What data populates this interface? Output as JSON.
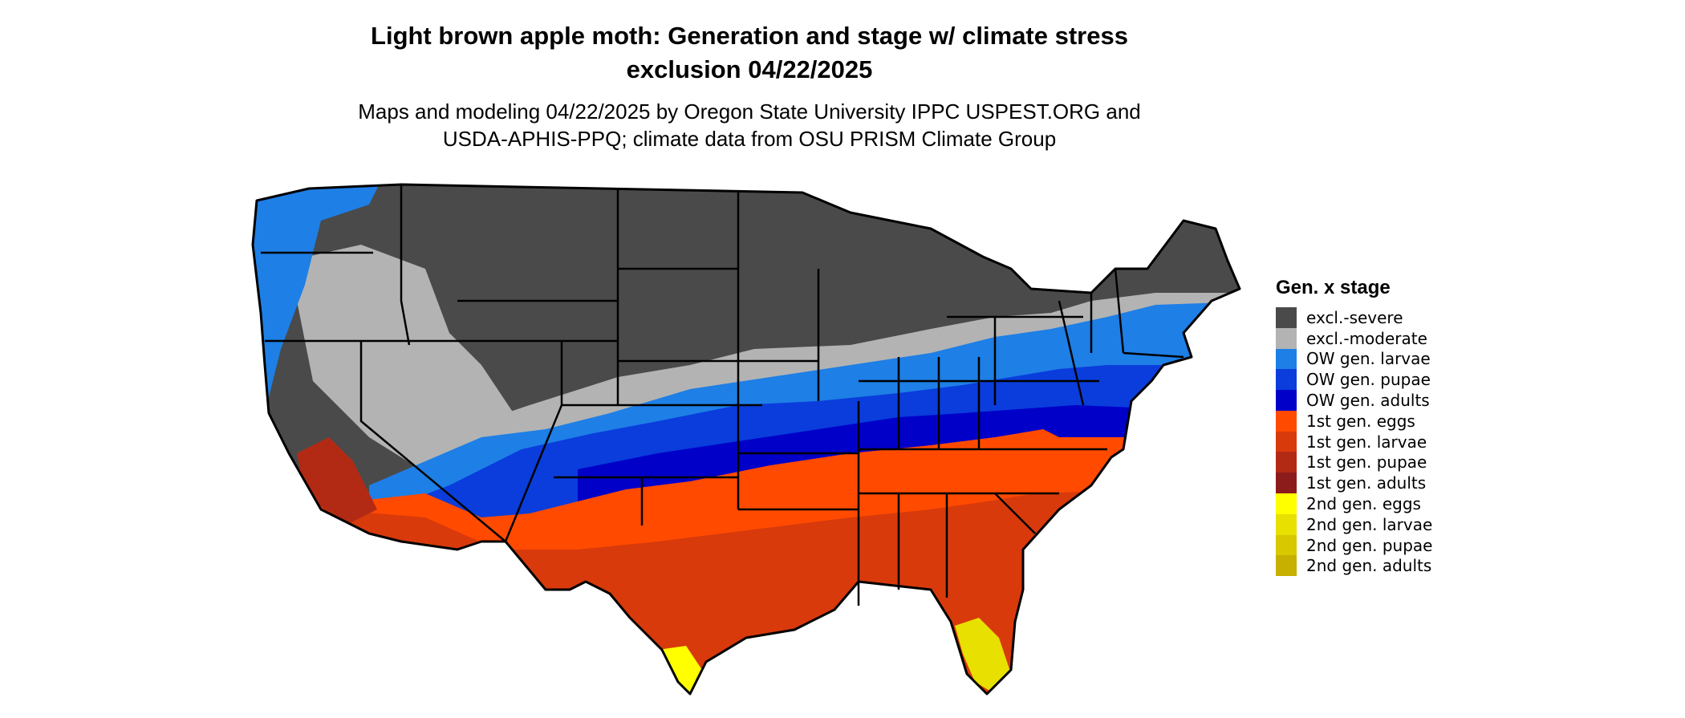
{
  "title": {
    "line1": "Light brown apple moth: Generation and stage w/ climate stress",
    "line2": "exclusion 04/22/2025"
  },
  "subtitle": {
    "line1": "Maps and modeling 04/22/2025 by Oregon State University IPPC USPEST.ORG and",
    "line2": "USDA-APHIS-PPQ; climate data from OSU PRISM Climate Group"
  },
  "legend": {
    "title": "Gen. x stage",
    "items": [
      {
        "label": "excl.-severe",
        "color": "#4a4a4a"
      },
      {
        "label": "excl.-moderate",
        "color": "#b3b3b3"
      },
      {
        "label": "OW gen. larvae",
        "color": "#1e7fe6"
      },
      {
        "label": "OW gen. pupae",
        "color": "#0a3ddc"
      },
      {
        "label": "OW gen. adults",
        "color": "#0000c8"
      },
      {
        "label": "1st gen. eggs",
        "color": "#ff4a00"
      },
      {
        "label": "1st gen. larvae",
        "color": "#d83a0c"
      },
      {
        "label": "1st gen. pupae",
        "color": "#b32a14"
      },
      {
        "label": "1st gen. adults",
        "color": "#8c1c1c"
      },
      {
        "label": "2nd gen. eggs",
        "color": "#ffff00"
      },
      {
        "label": "2nd gen. larvae",
        "color": "#e8e000"
      },
      {
        "label": "2nd gen. pupae",
        "color": "#d8c800"
      },
      {
        "label": "2nd gen. adults",
        "color": "#c8b000"
      }
    ]
  }
}
